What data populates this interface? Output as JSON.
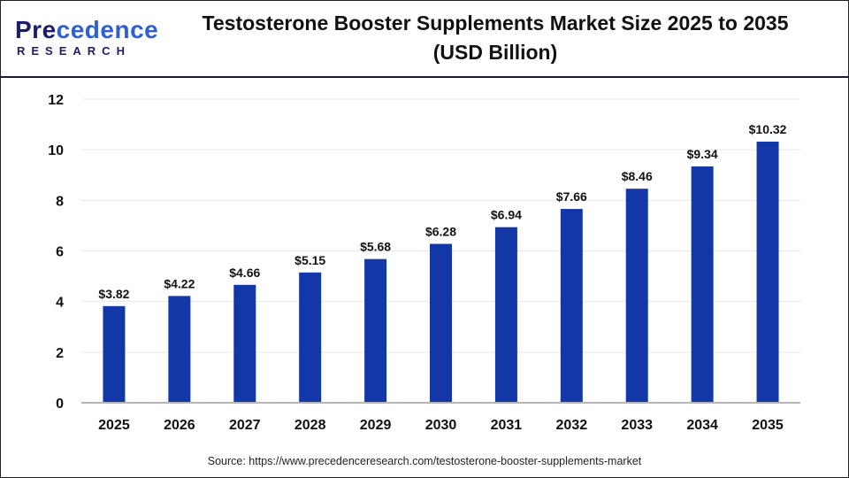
{
  "logo": {
    "top": "Precedence",
    "bottom": "RESEARCH"
  },
  "title_line1": "Testosterone Booster Supplements Market Size 2025 to 2035",
  "title_line2": "(USD Billion)",
  "source": "Source: https://www.precedenceresearch.com/testosterone-booster-supplements-market",
  "chart_data": {
    "type": "bar",
    "title": "Testosterone Booster Supplements Market Size 2025 to 2035 (USD Billion)",
    "categories": [
      "2025",
      "2026",
      "2027",
      "2028",
      "2029",
      "2030",
      "2031",
      "2032",
      "2033",
      "2034",
      "2035"
    ],
    "values": [
      3.82,
      4.22,
      4.66,
      5.15,
      5.68,
      6.28,
      6.94,
      7.66,
      8.46,
      9.34,
      10.32
    ],
    "data_labels": [
      "$3.82",
      "$4.22",
      "$4.66",
      "$5.15",
      "$5.68",
      "$6.28",
      "$6.94",
      "$7.66",
      "$8.46",
      "$9.34",
      "$10.32"
    ],
    "ylim": [
      0,
      12
    ],
    "yticks": [
      0,
      2,
      4,
      6,
      8,
      10,
      12
    ],
    "grid": true,
    "bar_color": "#1437a8",
    "xlabel": "",
    "ylabel": ""
  }
}
